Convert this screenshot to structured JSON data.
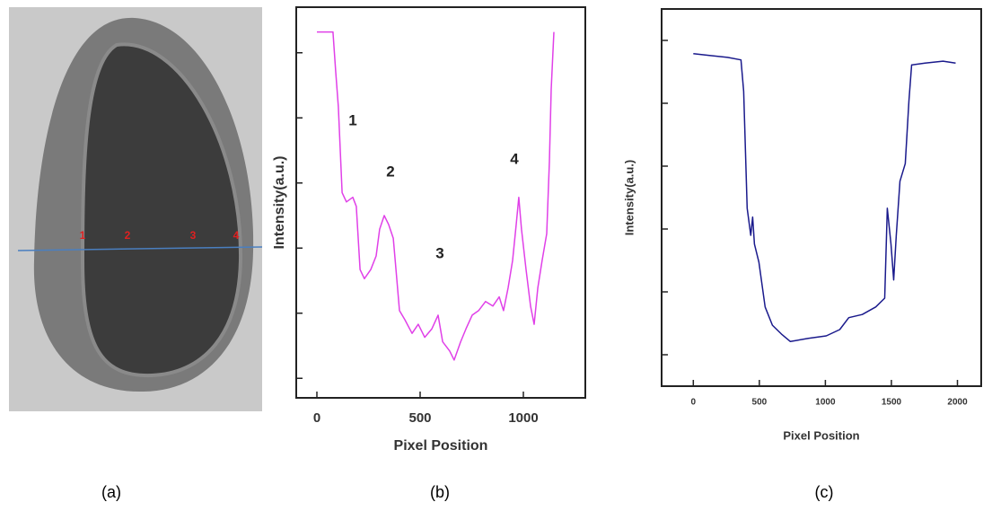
{
  "image": {
    "labels": [
      "1",
      "2",
      "3",
      "4"
    ]
  },
  "captions": [
    "(a)",
    "(b)",
    "(c)"
  ],
  "chart_data": [
    {
      "type": "line",
      "x_label": "Pixel Position",
      "y_label": "Intensity(a.u.)",
      "color": "#e040e8",
      "annotations": [
        "1",
        "2",
        "3",
        "4"
      ],
      "xlim": [
        -100,
        1300
      ],
      "xticks": [
        0,
        500,
        1000
      ],
      "ylim": [
        -0.3,
        5.7
      ],
      "yticks": [
        0,
        1,
        2,
        3,
        4,
        5
      ],
      "ytick_labels": false,
      "x": [
        0,
        78,
        91,
        104,
        122,
        143,
        174,
        191,
        209,
        230,
        261,
        287,
        304,
        326,
        348,
        370,
        383,
        400,
        426,
        461,
        491,
        522,
        557,
        587,
        609,
        643,
        665,
        696,
        722,
        752,
        783,
        817,
        852,
        883,
        904,
        926,
        948,
        965,
        978,
        991,
        1013,
        1035,
        1052,
        1070,
        1091,
        1113,
        1126,
        1135,
        1148
      ],
      "values": [
        5.32,
        5.32,
        4.72,
        4.17,
        2.85,
        2.71,
        2.78,
        2.64,
        1.67,
        1.53,
        1.67,
        1.88,
        2.29,
        2.5,
        2.36,
        2.15,
        1.67,
        1.04,
        0.9,
        0.69,
        0.83,
        0.63,
        0.76,
        0.97,
        0.56,
        0.42,
        0.28,
        0.56,
        0.76,
        0.97,
        1.04,
        1.18,
        1.11,
        1.25,
        1.04,
        1.39,
        1.81,
        2.36,
        2.78,
        2.29,
        1.67,
        1.11,
        0.83,
        1.39,
        1.81,
        2.22,
        3.33,
        4.44,
        5.32
      ]
    },
    {
      "type": "line",
      "x_label": "Pixel Position",
      "y_label": "Intensity(a.u.)",
      "color": "#1a1a8c",
      "xlim": [
        -240,
        2180
      ],
      "xticks": [
        0,
        500,
        1000,
        1500,
        2000
      ],
      "ylim": [
        -0.5,
        5.5
      ],
      "yticks": [
        0,
        1,
        2,
        3,
        4,
        5
      ],
      "ytick_labels": false,
      "x": [
        0,
        122,
        259,
        361,
        381,
        408,
        435,
        449,
        463,
        497,
        544,
        599,
        667,
        735,
        871,
        1007,
        1109,
        1177,
        1279,
        1381,
        1449,
        1469,
        1497,
        1517,
        1537,
        1565,
        1605,
        1633,
        1653,
        1755,
        1891,
        1986
      ],
      "values": [
        4.79,
        4.76,
        4.73,
        4.69,
        4.19,
        2.33,
        1.9,
        2.19,
        1.76,
        1.47,
        0.76,
        0.47,
        0.33,
        0.21,
        0.26,
        0.3,
        0.4,
        0.59,
        0.64,
        0.76,
        0.9,
        2.33,
        1.76,
        1.19,
        1.9,
        2.76,
        3.04,
        4.04,
        4.61,
        4.64,
        4.67,
        4.64
      ]
    }
  ]
}
